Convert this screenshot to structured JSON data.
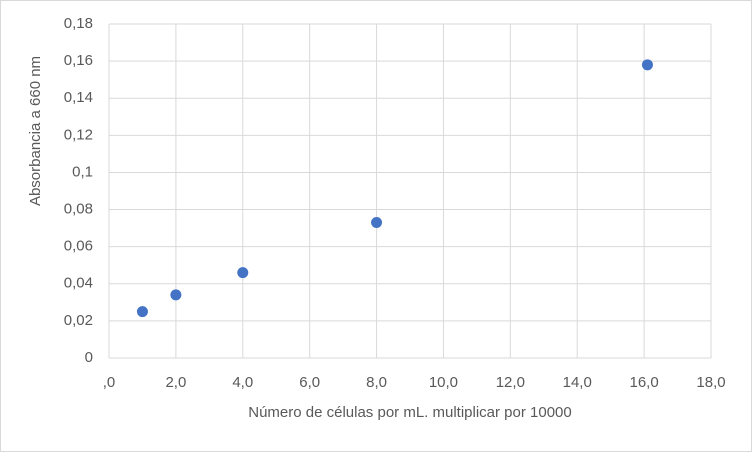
{
  "chart_data": {
    "type": "scatter",
    "x_label": "Número de células por mL. multiplicar  por 10000",
    "y_label": "Absorbancia a 660 nm",
    "series": [
      {
        "color": "#4472c4",
        "x": [
          1,
          2,
          4,
          8,
          16.1
        ],
        "values": [
          0.025,
          0.034,
          0.046,
          0.073,
          0.158
        ]
      }
    ],
    "xlim": [
      0,
      18
    ],
    "xticks": [
      {
        "value": 0,
        "label": ",0"
      },
      {
        "value": 2,
        "label": "2,0"
      },
      {
        "value": 4,
        "label": "4,0"
      },
      {
        "value": 6,
        "label": "6,0"
      },
      {
        "value": 8,
        "label": "8,0"
      },
      {
        "value": 10,
        "label": "10,0"
      },
      {
        "value": 12,
        "label": "12,0"
      },
      {
        "value": 14,
        "label": "14,0"
      },
      {
        "value": 16,
        "label": "16,0"
      },
      {
        "value": 18,
        "label": "18,0"
      }
    ],
    "ylim": [
      0,
      0.18
    ],
    "yticks": [
      0,
      {
        "value": 0.02,
        "label": "0,02"
      },
      {
        "value": 0.04,
        "label": "0,04"
      },
      {
        "value": 0.06,
        "label": "0,06"
      },
      {
        "value": 0.08,
        "label": "0,08"
      },
      {
        "value": 0.1,
        "label": "0,1"
      },
      {
        "value": 0.12,
        "label": "0,12"
      },
      {
        "value": 0.14,
        "label": "0,14"
      },
      {
        "value": 0.16,
        "label": "0,16"
      },
      {
        "value": 0.18,
        "label": "0,18"
      }
    ],
    "grid": true
  }
}
